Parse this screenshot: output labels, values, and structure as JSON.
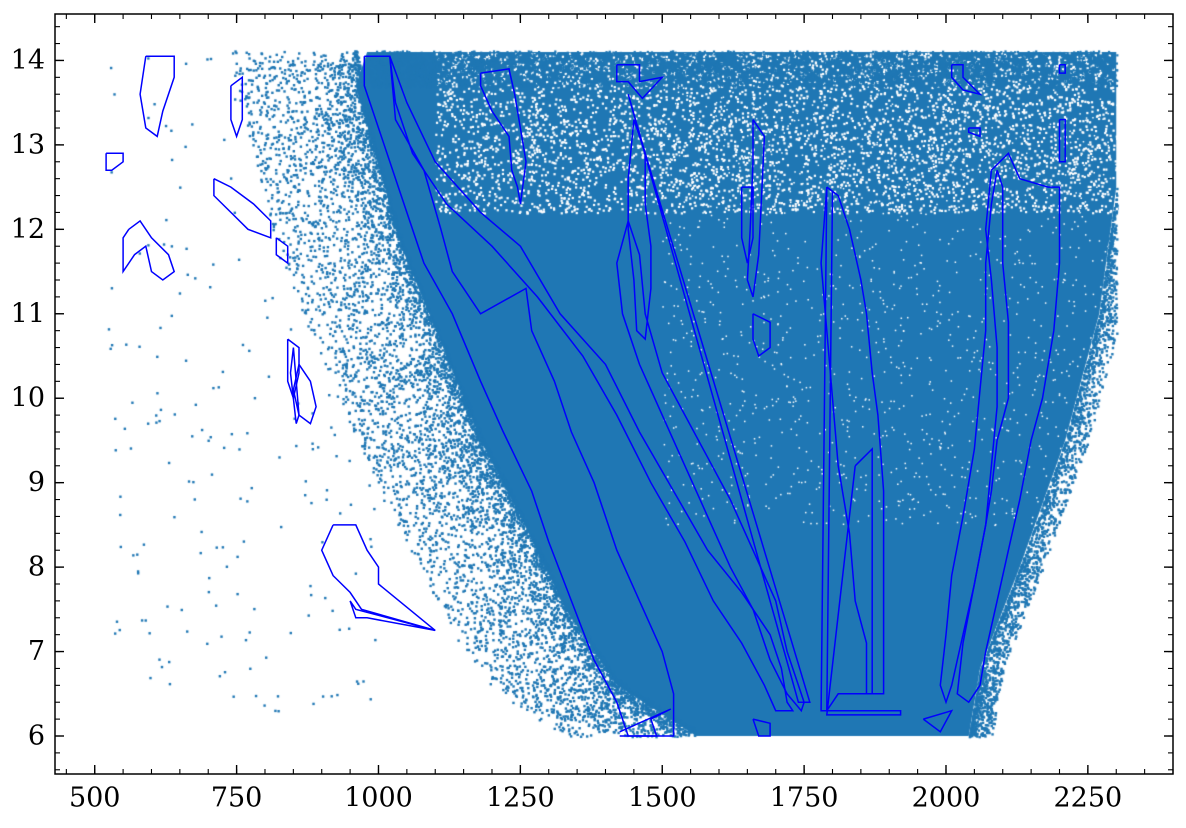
{
  "chart_data": {
    "type": "scatter",
    "title": "",
    "xlabel": "",
    "ylabel": "",
    "xlim": [
      430,
      2400
    ],
    "ylim": [
      5.55,
      14.55
    ],
    "x_ticks": [
      500,
      750,
      1000,
      1250,
      1500,
      1750,
      2000,
      2250
    ],
    "x_tick_labels": [
      "500",
      "750",
      "1000",
      "1250",
      "1500",
      "1750",
      "2000",
      "2250"
    ],
    "y_ticks": [
      6,
      7,
      8,
      9,
      10,
      11,
      12,
      13,
      14
    ],
    "y_tick_labels": [
      "6",
      "7",
      "8",
      "9",
      "10",
      "11",
      "12",
      "13",
      "14"
    ],
    "x_minor_step": 50,
    "y_minor_step": 0.2,
    "grid": false,
    "scatter": {
      "color": "#1f77b4",
      "point_count_estimate": 200000,
      "dense_envelope": [
        [
          980,
          14.1
        ],
        [
          1200,
          14.1
        ],
        [
          1500,
          14.1
        ],
        [
          1800,
          14.1
        ],
        [
          2000,
          14.1
        ],
        [
          2300,
          14.1
        ],
        [
          2300,
          12.5
        ],
        [
          2270,
          11.0
        ],
        [
          2210,
          9.5
        ],
        [
          2130,
          8.0
        ],
        [
          2060,
          6.8
        ],
        [
          2040,
          6.0
        ],
        [
          1560,
          6.0
        ],
        [
          1420,
          6.6
        ],
        [
          1330,
          7.5
        ],
        [
          1250,
          8.6
        ],
        [
          1180,
          9.5
        ],
        [
          1120,
          10.5
        ],
        [
          1040,
          11.8
        ],
        [
          990,
          13.0
        ],
        [
          960,
          13.7
        ]
      ]
    },
    "outline_color": "#0000ff",
    "outlines": [
      [
        [
          975,
          14.05
        ],
        [
          1020,
          14.05
        ],
        [
          1030,
          13.3
        ],
        [
          1080,
          12.7
        ],
        [
          1110,
          12.0
        ],
        [
          1130,
          11.5
        ],
        [
          1180,
          11.0
        ],
        [
          1260,
          11.3
        ],
        [
          1270,
          10.8
        ],
        [
          1310,
          10.2
        ],
        [
          1340,
          9.6
        ],
        [
          1380,
          9.0
        ],
        [
          1420,
          8.2
        ],
        [
          1460,
          7.6
        ],
        [
          1500,
          7.0
        ],
        [
          1520,
          6.5
        ],
        [
          1520,
          6.0
        ],
        [
          1440,
          6.0
        ],
        [
          1420,
          6.4
        ],
        [
          1380,
          6.9
        ],
        [
          1340,
          7.6
        ],
        [
          1300,
          8.3
        ],
        [
          1270,
          8.9
        ],
        [
          1220,
          9.6
        ],
        [
          1180,
          10.2
        ],
        [
          1130,
          11.0
        ],
        [
          1080,
          11.6
        ],
        [
          1040,
          12.4
        ],
        [
          1000,
          13.2
        ],
        [
          975,
          13.7
        ],
        [
          975,
          14.05
        ]
      ],
      [
        [
          1020,
          14.05
        ],
        [
          1050,
          13.5
        ],
        [
          1100,
          12.8
        ],
        [
          1180,
          12.2
        ],
        [
          1250,
          11.8
        ],
        [
          1320,
          11.0
        ],
        [
          1400,
          10.4
        ],
        [
          1460,
          9.6
        ],
        [
          1520,
          8.9
        ],
        [
          1580,
          8.2
        ],
        [
          1640,
          7.7
        ],
        [
          1690,
          7.2
        ],
        [
          1710,
          6.8
        ],
        [
          1720,
          6.4
        ],
        [
          1730,
          6.3
        ],
        [
          1700,
          6.3
        ],
        [
          1680,
          6.6
        ],
        [
          1640,
          7.1
        ],
        [
          1590,
          7.6
        ],
        [
          1540,
          8.3
        ],
        [
          1480,
          9.0
        ],
        [
          1420,
          9.8
        ],
        [
          1360,
          10.5
        ],
        [
          1280,
          11.2
        ],
        [
          1200,
          11.8
        ],
        [
          1120,
          12.3
        ],
        [
          1060,
          12.9
        ],
        [
          1030,
          13.5
        ],
        [
          1020,
          14.05
        ]
      ],
      [
        [
          1425,
          6.0
        ],
        [
          1490,
          6.0
        ],
        [
          1480,
          6.2
        ],
        [
          1515,
          6.32
        ],
        [
          1425,
          6.05
        ]
      ],
      [
        [
          1440,
          12.1
        ],
        [
          1460,
          11.7
        ],
        [
          1470,
          11.0
        ],
        [
          1500,
          10.3
        ],
        [
          1540,
          9.8
        ],
        [
          1580,
          9.3
        ],
        [
          1620,
          8.8
        ],
        [
          1660,
          8.2
        ],
        [
          1700,
          7.6
        ],
        [
          1720,
          7.0
        ],
        [
          1740,
          6.6
        ],
        [
          1750,
          6.4
        ],
        [
          1745,
          6.3
        ],
        [
          1720,
          6.5
        ],
        [
          1690,
          6.9
        ],
        [
          1660,
          7.5
        ],
        [
          1620,
          8.0
        ],
        [
          1580,
          8.6
        ],
        [
          1540,
          9.2
        ],
        [
          1500,
          9.8
        ],
        [
          1460,
          10.4
        ],
        [
          1430,
          11.0
        ],
        [
          1420,
          11.6
        ],
        [
          1440,
          12.1
        ]
      ],
      [
        [
          1450,
          13.3
        ],
        [
          1470,
          12.9
        ],
        [
          1470,
          12.3
        ],
        [
          1480,
          11.8
        ],
        [
          1480,
          11.3
        ],
        [
          1470,
          10.7
        ],
        [
          1455,
          10.8
        ],
        [
          1450,
          11.4
        ],
        [
          1440,
          12.0
        ],
        [
          1440,
          12.6
        ],
        [
          1450,
          13.3
        ]
      ],
      [
        [
          1440,
          13.6
        ],
        [
          1470,
          12.9
        ],
        [
          1760,
          6.4
        ],
        [
          1740,
          6.4
        ],
        [
          1440,
          13.6
        ]
      ],
      [
        [
          1420,
          13.95
        ],
        [
          1460,
          13.95
        ],
        [
          1460,
          13.75
        ],
        [
          1500,
          13.8
        ],
        [
          1465,
          13.55
        ],
        [
          1440,
          13.75
        ],
        [
          1420,
          13.75
        ],
        [
          1420,
          13.95
        ]
      ],
      [
        [
          1180,
          13.85
        ],
        [
          1230,
          13.9
        ],
        [
          1240,
          13.6
        ],
        [
          1255,
          13.0
        ],
        [
          1260,
          12.8
        ],
        [
          1250,
          12.3
        ],
        [
          1245,
          12.5
        ],
        [
          1235,
          12.7
        ],
        [
          1230,
          13.1
        ],
        [
          1200,
          13.4
        ],
        [
          1180,
          13.7
        ],
        [
          1180,
          13.85
        ]
      ],
      [
        [
          1640,
          12.5
        ],
        [
          1660,
          12.5
        ],
        [
          1660,
          11.9
        ],
        [
          1650,
          11.6
        ],
        [
          1640,
          11.9
        ],
        [
          1640,
          12.5
        ]
      ],
      [
        [
          1660,
          13.3
        ],
        [
          1680,
          13.1
        ],
        [
          1675,
          12.4
        ],
        [
          1670,
          11.7
        ],
        [
          1660,
          11.2
        ],
        [
          1650,
          11.4
        ],
        [
          1655,
          12.0
        ],
        [
          1660,
          12.8
        ],
        [
          1660,
          13.3
        ]
      ],
      [
        [
          1660,
          11.0
        ],
        [
          1690,
          10.9
        ],
        [
          1690,
          10.6
        ],
        [
          1670,
          10.5
        ],
        [
          1660,
          10.7
        ],
        [
          1660,
          11.0
        ]
      ],
      [
        [
          1790,
          12.5
        ],
        [
          1810,
          12.4
        ],
        [
          1830,
          12.0
        ],
        [
          1850,
          11.4
        ],
        [
          1860,
          11.0
        ],
        [
          1870,
          10.3
        ],
        [
          1880,
          9.8
        ],
        [
          1890,
          8.9
        ],
        [
          1890,
          6.5
        ],
        [
          1860,
          6.5
        ],
        [
          1860,
          7.1
        ],
        [
          1840,
          7.6
        ],
        [
          1830,
          8.4
        ],
        [
          1810,
          9.2
        ],
        [
          1800,
          10.0
        ],
        [
          1790,
          10.8
        ],
        [
          1780,
          11.6
        ],
        [
          1790,
          12.5
        ]
      ],
      [
        [
          1840,
          9.2
        ],
        [
          1870,
          9.4
        ],
        [
          1870,
          6.5
        ],
        [
          1810,
          6.5
        ],
        [
          1790,
          6.3
        ],
        [
          1920,
          6.3
        ],
        [
          1920,
          6.25
        ],
        [
          1790,
          6.25
        ],
        [
          1840,
          9.2
        ]
      ],
      [
        [
          1790,
          12.5
        ],
        [
          1800,
          12.45
        ],
        [
          1790,
          6.3
        ],
        [
          1780,
          6.3
        ],
        [
          1790,
          12.5
        ]
      ],
      [
        [
          1660,
          6.2
        ],
        [
          1690,
          6.15
        ],
        [
          1690,
          6.0
        ],
        [
          1670,
          6.0
        ],
        [
          1660,
          6.2
        ]
      ],
      [
        [
          2080,
          12.7
        ],
        [
          2110,
          12.9
        ],
        [
          2130,
          12.6
        ],
        [
          2180,
          12.5
        ],
        [
          2200,
          12.5
        ],
        [
          2200,
          11.6
        ],
        [
          2190,
          10.8
        ],
        [
          2170,
          10.0
        ],
        [
          2150,
          9.5
        ],
        [
          2130,
          8.8
        ],
        [
          2110,
          8.2
        ],
        [
          2090,
          7.6
        ],
        [
          2070,
          7.0
        ],
        [
          2060,
          6.6
        ],
        [
          2040,
          6.4
        ],
        [
          2020,
          6.5
        ],
        [
          2030,
          7.1
        ],
        [
          2050,
          7.8
        ],
        [
          2070,
          8.5
        ],
        [
          2080,
          9.2
        ],
        [
          2090,
          9.9
        ],
        [
          2090,
          10.6
        ],
        [
          2080,
          11.4
        ],
        [
          2070,
          12.0
        ],
        [
          2080,
          12.7
        ]
      ],
      [
        [
          2090,
          12.7
        ],
        [
          2100,
          12.5
        ],
        [
          2100,
          11.6
        ],
        [
          2110,
          10.9
        ],
        [
          2110,
          10.0
        ],
        [
          2090,
          9.5
        ],
        [
          2080,
          8.9
        ],
        [
          2070,
          8.5
        ],
        [
          2050,
          7.8
        ],
        [
          2030,
          7.2
        ],
        [
          2020,
          6.9
        ],
        [
          2010,
          6.6
        ],
        [
          2000,
          6.4
        ],
        [
          1990,
          6.6
        ],
        [
          2000,
          7.2
        ],
        [
          2010,
          7.9
        ],
        [
          2030,
          8.6
        ],
        [
          2050,
          9.4
        ],
        [
          2060,
          10.1
        ],
        [
          2070,
          10.8
        ],
        [
          2070,
          11.6
        ],
        [
          2080,
          12.3
        ],
        [
          2090,
          12.7
        ]
      ],
      [
        [
          1960,
          6.2
        ],
        [
          2010,
          6.3
        ],
        [
          1990,
          6.05
        ],
        [
          1960,
          6.2
        ]
      ],
      [
        [
          2010,
          13.95
        ],
        [
          2030,
          13.95
        ],
        [
          2030,
          13.8
        ],
        [
          2060,
          13.6
        ],
        [
          2030,
          13.65
        ],
        [
          2010,
          13.8
        ],
        [
          2010,
          13.95
        ]
      ],
      [
        [
          2040,
          13.2
        ],
        [
          2060,
          13.2
        ],
        [
          2060,
          13.1
        ],
        [
          2040,
          13.15
        ],
        [
          2040,
          13.2
        ]
      ],
      [
        [
          2200,
          13.95
        ],
        [
          2210,
          13.95
        ],
        [
          2210,
          13.85
        ],
        [
          2200,
          13.85
        ],
        [
          2200,
          13.95
        ]
      ],
      [
        [
          2200,
          13.3
        ],
        [
          2210,
          13.3
        ],
        [
          2210,
          12.8
        ],
        [
          2200,
          12.8
        ],
        [
          2200,
          13.3
        ]
      ],
      [
        [
          590,
          14.05
        ],
        [
          640,
          14.05
        ],
        [
          640,
          13.8
        ],
        [
          620,
          13.4
        ],
        [
          610,
          13.1
        ],
        [
          590,
          13.2
        ],
        [
          580,
          13.6
        ],
        [
          590,
          14.05
        ]
      ],
      [
        [
          520,
          12.9
        ],
        [
          550,
          12.9
        ],
        [
          550,
          12.8
        ],
        [
          530,
          12.7
        ],
        [
          520,
          12.7
        ],
        [
          520,
          12.9
        ]
      ],
      [
        [
          740,
          13.7
        ],
        [
          760,
          13.8
        ],
        [
          760,
          13.3
        ],
        [
          750,
          13.1
        ],
        [
          740,
          13.3
        ],
        [
          740,
          13.7
        ]
      ],
      [
        [
          710,
          12.6
        ],
        [
          740,
          12.5
        ],
        [
          780,
          12.3
        ],
        [
          810,
          12.1
        ],
        [
          810,
          11.9
        ],
        [
          770,
          12.0
        ],
        [
          740,
          12.2
        ],
        [
          710,
          12.4
        ],
        [
          710,
          12.6
        ]
      ],
      [
        [
          820,
          11.9
        ],
        [
          840,
          11.8
        ],
        [
          840,
          11.6
        ],
        [
          820,
          11.7
        ],
        [
          820,
          11.9
        ]
      ],
      [
        [
          560,
          12.0
        ],
        [
          580,
          12.1
        ],
        [
          600,
          11.9
        ],
        [
          630,
          11.7
        ],
        [
          640,
          11.5
        ],
        [
          620,
          11.4
        ],
        [
          600,
          11.5
        ],
        [
          590,
          11.8
        ],
        [
          570,
          11.7
        ],
        [
          550,
          11.5
        ],
        [
          550,
          11.9
        ],
        [
          560,
          12.0
        ]
      ],
      [
        [
          840,
          10.7
        ],
        [
          860,
          10.6
        ],
        [
          860,
          10.3
        ],
        [
          850,
          10.0
        ],
        [
          840,
          10.2
        ],
        [
          840,
          10.7
        ]
      ],
      [
        [
          860,
          10.4
        ],
        [
          880,
          10.2
        ],
        [
          890,
          9.9
        ],
        [
          880,
          9.7
        ],
        [
          860,
          9.8
        ],
        [
          850,
          10.1
        ],
        [
          860,
          10.4
        ]
      ],
      [
        [
          850,
          10.6
        ],
        [
          860,
          9.8
        ],
        [
          855,
          9.7
        ],
        [
          845,
          10.3
        ],
        [
          850,
          10.6
        ]
      ],
      [
        [
          920,
          8.5
        ],
        [
          960,
          8.5
        ],
        [
          980,
          8.2
        ],
        [
          1000,
          8.0
        ],
        [
          1000,
          7.8
        ],
        [
          1100,
          7.25
        ],
        [
          970,
          7.5
        ],
        [
          950,
          7.7
        ],
        [
          920,
          7.9
        ],
        [
          900,
          8.2
        ],
        [
          920,
          8.5
        ]
      ],
      [
        [
          950,
          7.6
        ],
        [
          960,
          7.4
        ],
        [
          980,
          7.4
        ],
        [
          1100,
          7.25
        ],
        [
          960,
          7.5
        ],
        [
          950,
          7.6
        ]
      ]
    ]
  }
}
